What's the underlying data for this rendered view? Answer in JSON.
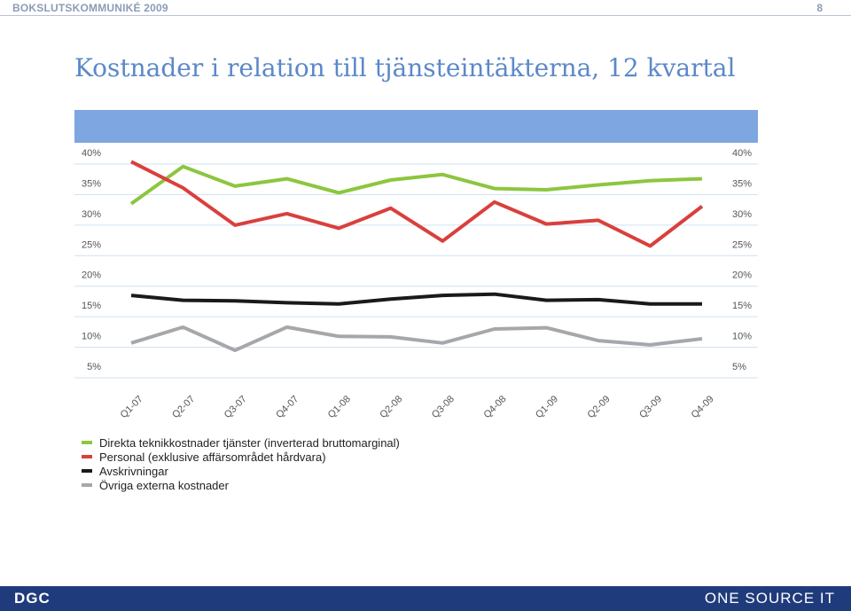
{
  "header": {
    "doc_title": "BOKSLUTSKOMMUNIKÉ 2009",
    "page_number": "8"
  },
  "title": "Kostnader i relation till tjänsteintäkterna, 12 kvartal",
  "footer": {
    "left_logo": "DGC",
    "right_logo": "ONE SOURCE IT"
  },
  "colors": {
    "title": "#5b88c9",
    "band": "#7ea6e0",
    "footer": "#203b7b"
  },
  "chart_data": {
    "type": "line",
    "categories": [
      "Q1-07",
      "Q2-07",
      "Q3-07",
      "Q4-07",
      "Q1-08",
      "Q2-08",
      "Q3-08",
      "Q4-08",
      "Q1-09",
      "Q2-09",
      "Q3-09",
      "Q4-09"
    ],
    "y_ticks": [
      "40%",
      "35%",
      "30%",
      "25%",
      "20%",
      "15%",
      "10%",
      "5%"
    ],
    "ylim": [
      5,
      40
    ],
    "grid": true,
    "legend_position": "bottom-left",
    "series": [
      {
        "name": "Direkta teknikkostnader tjänster (inverterad bruttomarginal)",
        "color": "#8cc63e",
        "values": [
          31.6,
          37.7,
          34.5,
          35.7,
          33.4,
          35.5,
          36.4,
          34.1,
          33.9,
          34.7,
          35.4,
          35.7
        ]
      },
      {
        "name": "Personal (exklusive affärsområdet hårdvara)",
        "color": "#d9403c",
        "values": [
          38.5,
          34.2,
          28.1,
          30.0,
          27.6,
          30.9,
          25.5,
          31.9,
          28.3,
          28.9,
          24.7,
          31.2
        ]
      },
      {
        "name": "Avskrivningar",
        "color": "#1a1a1a",
        "values": [
          16.6,
          15.8,
          15.7,
          15.4,
          15.2,
          16.0,
          16.6,
          16.8,
          15.8,
          15.9,
          15.2,
          15.2
        ]
      },
      {
        "name": "Övriga externa kostnader",
        "color": "#a7a7ab",
        "values": [
          8.8,
          11.4,
          7.6,
          11.4,
          9.9,
          9.8,
          8.8,
          11.1,
          11.3,
          9.2,
          8.5,
          9.5
        ]
      }
    ]
  }
}
